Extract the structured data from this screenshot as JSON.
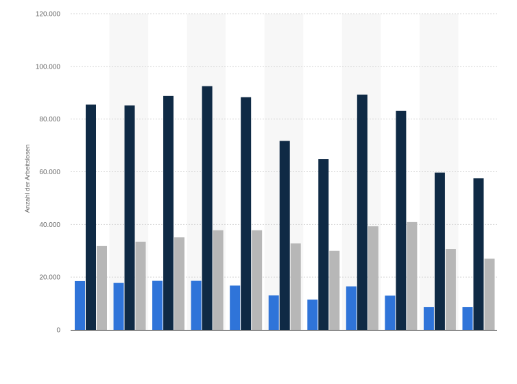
{
  "chart_data": {
    "type": "bar",
    "title": "",
    "xlabel": "",
    "ylabel": "Anzahl der Arbeitslosen",
    "ylim": [
      0,
      120000
    ],
    "yticks": [
      0,
      20000,
      40000,
      60000,
      80000,
      100000,
      120000
    ],
    "ytick_labels": [
      "0",
      "20.000",
      "40.000",
      "60.000",
      "80.000",
      "100.000",
      "120.000"
    ],
    "grid": true,
    "legend": "none",
    "categories": [
      "",
      "",
      "",
      "",
      "",
      "",
      "",
      "",
      "",
      "",
      ""
    ],
    "series": [
      {
        "color": "#2f74d9",
        "values": [
          18500,
          17800,
          18600,
          18600,
          16800,
          13100,
          11500,
          16500,
          13000,
          8600,
          8600
        ]
      },
      {
        "color": "#0f2a45",
        "values": [
          85500,
          85200,
          88800,
          92500,
          88300,
          71700,
          64800,
          89300,
          83100,
          59700,
          57500
        ]
      },
      {
        "color": "#b7b7b7",
        "values": [
          31800,
          33400,
          35100,
          37800,
          37800,
          32800,
          30000,
          39300,
          40900,
          30700,
          27000
        ]
      }
    ]
  }
}
